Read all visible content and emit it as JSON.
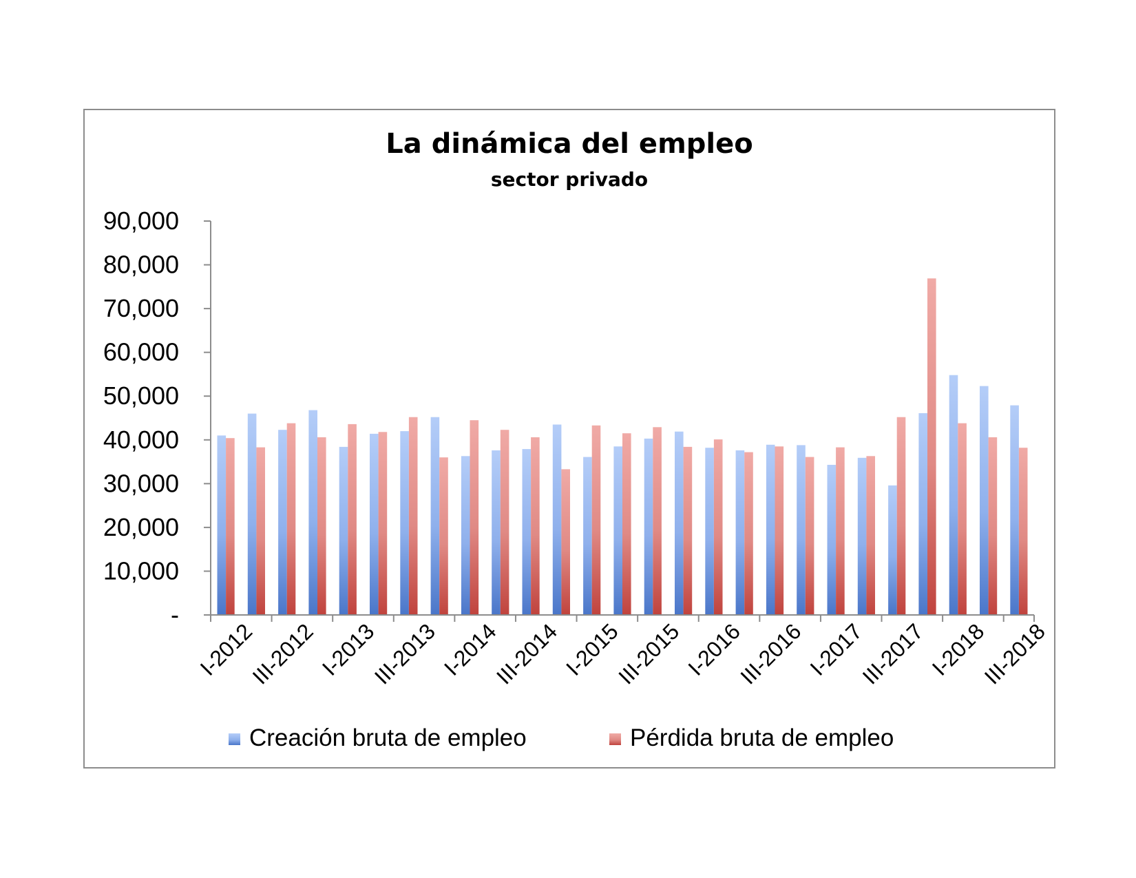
{
  "chart_data": {
    "type": "bar",
    "title": "La dinámica del empleo",
    "subtitle": "sector privado",
    "ylim": [
      0,
      90000
    ],
    "yticks": [
      0,
      10000,
      20000,
      30000,
      40000,
      50000,
      60000,
      70000,
      80000,
      90000
    ],
    "ytick_labels": [
      "-",
      "10,000",
      "20,000",
      "30,000",
      "40,000",
      "50,000",
      "60,000",
      "70,000",
      "80,000",
      "90,000"
    ],
    "categories": [
      "I-2012",
      "II-2012",
      "III-2012",
      "IV-2012",
      "I-2013",
      "II-2013",
      "III-2013",
      "IV-2013",
      "I-2014",
      "II-2014",
      "III-2014",
      "IV-2014",
      "I-2015",
      "II-2015",
      "III-2015",
      "IV-2015",
      "I-2016",
      "II-2016",
      "III-2016",
      "IV-2016",
      "I-2017",
      "II-2017",
      "III-2017",
      "IV-2017",
      "I-2018",
      "II-2018",
      "III-2018"
    ],
    "xtick_labels": [
      "I-2012",
      "III-2012",
      "I-2013",
      "III-2013",
      "I-2014",
      "III-2014",
      "I-2015",
      "III-2015",
      "I-2016",
      "III-2016",
      "I-2017",
      "III-2017",
      "I-2018",
      "III-2018"
    ],
    "series": [
      {
        "name": "Creación bruta de empleo",
        "color": "#6f95de",
        "values": [
          41000,
          46000,
          42300,
          46800,
          38400,
          41400,
          42000,
          45200,
          36300,
          37600,
          37900,
          43500,
          36100,
          38500,
          40300,
          41900,
          38200,
          37600,
          38900,
          38800,
          34300,
          35900,
          29600,
          46100,
          54800,
          52300,
          47900
        ]
      },
      {
        "name": "Pérdida bruta de empleo",
        "color": "#d9716b",
        "values": [
          40400,
          38300,
          43800,
          40600,
          43600,
          41800,
          45200,
          36000,
          44500,
          42300,
          40600,
          33300,
          43300,
          41500,
          42900,
          38400,
          40100,
          37200,
          38500,
          36100,
          38300,
          36300,
          45200,
          76900,
          43800,
          40600,
          38200
        ]
      }
    ],
    "legend_position": "bottom",
    "grid": false
  }
}
